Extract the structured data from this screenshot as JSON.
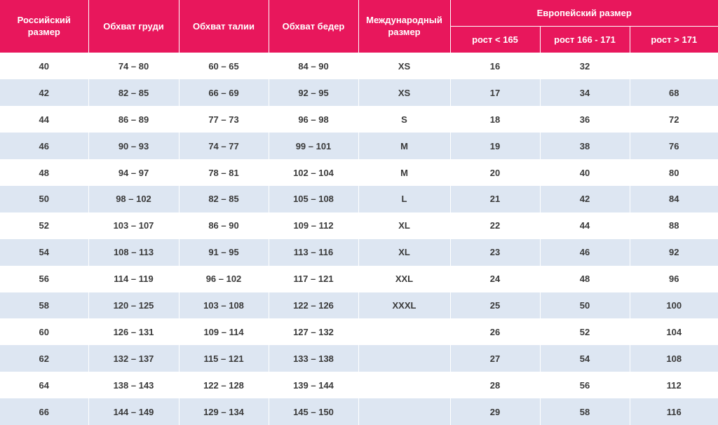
{
  "table": {
    "header": {
      "russian_size": "Российский\nразмер",
      "chest": "Обхват груди",
      "waist": "Обхват талии",
      "hips": "Обхват бедер",
      "international": "Международный\nразмер",
      "european": "Европейский размер",
      "heights": [
        "рост < 165",
        "рост 166 - 171",
        "рост > 171"
      ]
    },
    "rows": [
      [
        40,
        "74 – 80",
        "60 – 65",
        "84 – 90",
        "XS",
        16,
        32,
        null
      ],
      [
        42,
        "82 – 85",
        "66 – 69",
        "92 – 95",
        "XS",
        17,
        34,
        68
      ],
      [
        44,
        "86 – 89",
        "77 – 73",
        "96 – 98",
        "S",
        18,
        36,
        72
      ],
      [
        46,
        "90 – 93",
        "74 – 77",
        "99 – 101",
        "M",
        19,
        38,
        76
      ],
      [
        48,
        "94 – 97",
        "78 – 81",
        "102 – 104",
        "M",
        20,
        40,
        80
      ],
      [
        50,
        "98 – 102",
        "82 – 85",
        "105 – 108",
        "L",
        21,
        42,
        84
      ],
      [
        52,
        "103 – 107",
        "86 – 90",
        "109 – 112",
        "XL",
        22,
        44,
        88
      ],
      [
        54,
        "108 – 113",
        "91 – 95",
        "113 – 116",
        "XL",
        23,
        46,
        92
      ],
      [
        56,
        "114 – 119",
        "96 – 102",
        "117 – 121",
        "XXL",
        24,
        48,
        96
      ],
      [
        58,
        "120 – 125",
        "103 – 108",
        "122 – 126",
        "XXXL",
        25,
        50,
        100
      ],
      [
        60,
        "126 – 131",
        "109 – 114",
        "127 – 132",
        null,
        26,
        52,
        104
      ],
      [
        62,
        "132 – 137",
        "115 – 121",
        "133 – 138",
        null,
        27,
        54,
        108
      ],
      [
        64,
        "138 – 143",
        "122 – 128",
        "139 – 144",
        null,
        28,
        56,
        112
      ],
      [
        66,
        "144 – 149",
        "129 – 134",
        "145 – 150",
        null,
        29,
        58,
        116
      ]
    ]
  }
}
